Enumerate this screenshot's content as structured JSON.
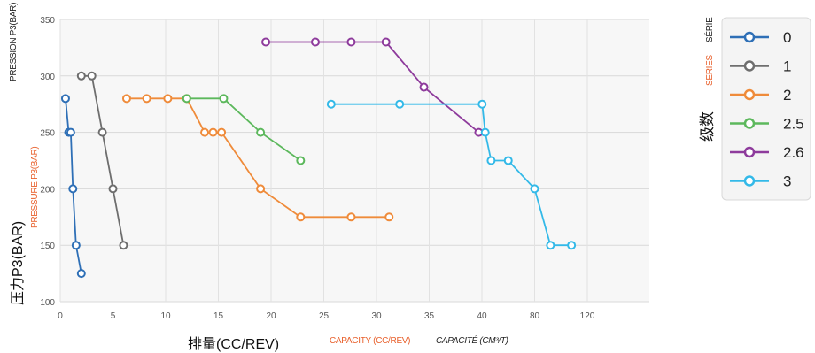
{
  "labels": {
    "y_zh": "压力P3(BAR)",
    "y_en": "PRESSURE P3(BAR)",
    "y_fr": "PRESSION P3(BAR)",
    "x_zh": "排量(CC/REV)",
    "x_en": "CAPACITY (CC/REV)",
    "x_fr": "CAPACITÉ (CM³/T)",
    "legend_zh": "级数",
    "legend_en": "SERIES",
    "legend_fr": "SÉRIE"
  },
  "chart_data": {
    "type": "line",
    "xlabel": "排量(CC/REV)",
    "ylabel": "压力P3(BAR)",
    "x_ticks": [
      "0",
      "5",
      "10",
      "15",
      "20",
      "25",
      "30",
      "35",
      "40",
      "80",
      "120"
    ],
    "y_ticks": [
      100,
      150,
      200,
      250,
      300,
      350
    ],
    "ylim": [
      100,
      350
    ],
    "grid": true,
    "legend_position": "right",
    "series": [
      {
        "name": "0",
        "color": "#2e6fb6",
        "x": [
          0.5,
          0.8,
          1.0,
          1.2,
          1.5,
          2.0
        ],
        "y": [
          280,
          250,
          250,
          200,
          150,
          125
        ]
      },
      {
        "name": "1",
        "color": "#6e6e6e",
        "x": [
          2.0,
          3.0,
          4.0,
          5.0,
          6.0
        ],
        "y": [
          300,
          300,
          250,
          200,
          150
        ]
      },
      {
        "name": "2",
        "color": "#ef8b3a",
        "x": [
          6.3,
          8.2,
          10.2,
          12.0,
          13.7,
          14.5,
          15.3,
          19.0,
          22.8,
          27.6,
          31.2
        ],
        "y": [
          280,
          280,
          280,
          280,
          250,
          250,
          250,
          200,
          175,
          175,
          175
        ]
      },
      {
        "name": "2.5",
        "color": "#5cb85c",
        "x": [
          12.0,
          15.5,
          19.0,
          22.8
        ],
        "y": [
          280,
          280,
          250,
          225
        ]
      },
      {
        "name": "2.6",
        "color": "#8e3b9c",
        "x": [
          19.5,
          24.2,
          27.6,
          30.9,
          34.5,
          39.7
        ],
        "y": [
          330,
          330,
          330,
          330,
          290,
          250
        ]
      },
      {
        "name": "3",
        "color": "#33b9e8",
        "x": [
          25.7,
          32.2,
          40.2,
          42.5,
          47.0,
          60.0,
          80.0,
          92.0,
          108.0
        ],
        "y": [
          275,
          275,
          275,
          250,
          225,
          225,
          200,
          150,
          150
        ]
      }
    ]
  }
}
